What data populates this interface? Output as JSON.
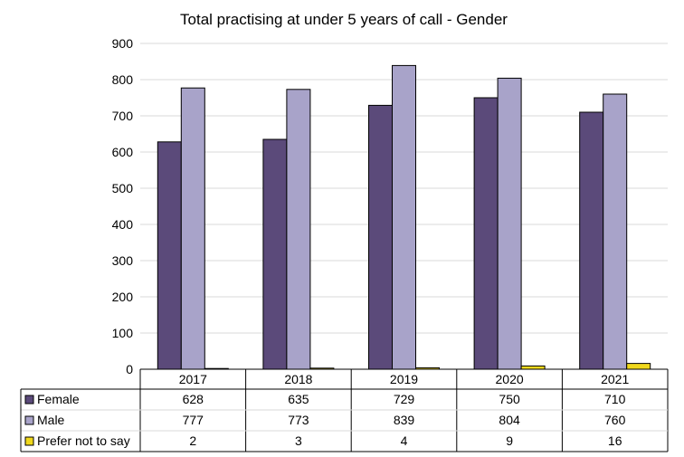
{
  "chart_data": {
    "type": "bar",
    "title": "Total practising at under 5 years of call - Gender",
    "categories": [
      "2017",
      "2018",
      "2019",
      "2020",
      "2021"
    ],
    "series": [
      {
        "name": "Female",
        "color": "#5b4a7a",
        "values": [
          628,
          635,
          729,
          750,
          710
        ]
      },
      {
        "name": "Male",
        "color": "#a8a3c9",
        "values": [
          777,
          773,
          839,
          804,
          760
        ]
      },
      {
        "name": "Prefer not to say",
        "color": "#f0d81c",
        "values": [
          2,
          3,
          4,
          9,
          16
        ]
      }
    ],
    "yticks": [
      "0",
      "100",
      "200",
      "300",
      "400",
      "500",
      "600",
      "700",
      "800",
      "900"
    ],
    "ylim": [
      0,
      900
    ],
    "grid": true,
    "legend": "data-table"
  }
}
